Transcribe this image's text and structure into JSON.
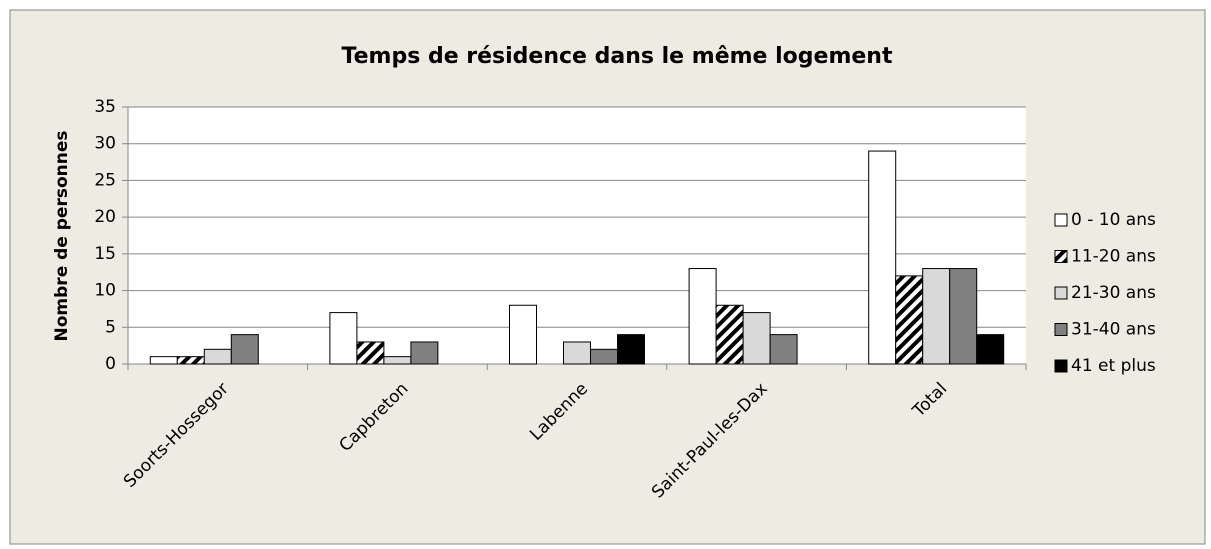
{
  "chart_data": {
    "type": "bar",
    "title": "Temps de résidence dans le même logement",
    "y_label": "Nombre de personnes",
    "categories": [
      "Soorts-Hossegor",
      "Capbreton",
      "Labenne",
      "Saint-Paul-les-Dax",
      "Total"
    ],
    "series": [
      {
        "name": "0 - 10 ans",
        "color": "#ffffff",
        "values": [
          1,
          7,
          8,
          13,
          29
        ]
      },
      {
        "name": "11-20 ans",
        "color": "#000000",
        "pattern": "hatch",
        "values": [
          1,
          3,
          0,
          8,
          12
        ]
      },
      {
        "name": "21-30 ans",
        "color": "#d9d9d9",
        "values": [
          2,
          1,
          3,
          7,
          13
        ]
      },
      {
        "name": "31-40 ans",
        "color": "#808080",
        "values": [
          4,
          3,
          2,
          4,
          13
        ]
      },
      {
        "name": "41 et plus",
        "color": "#000000",
        "values": [
          0,
          0,
          4,
          0,
          4
        ]
      }
    ],
    "ylim": [
      0,
      35
    ],
    "yticks": [
      0,
      5,
      10,
      15,
      20,
      25,
      30,
      35
    ],
    "grid": true,
    "legend": "right"
  }
}
